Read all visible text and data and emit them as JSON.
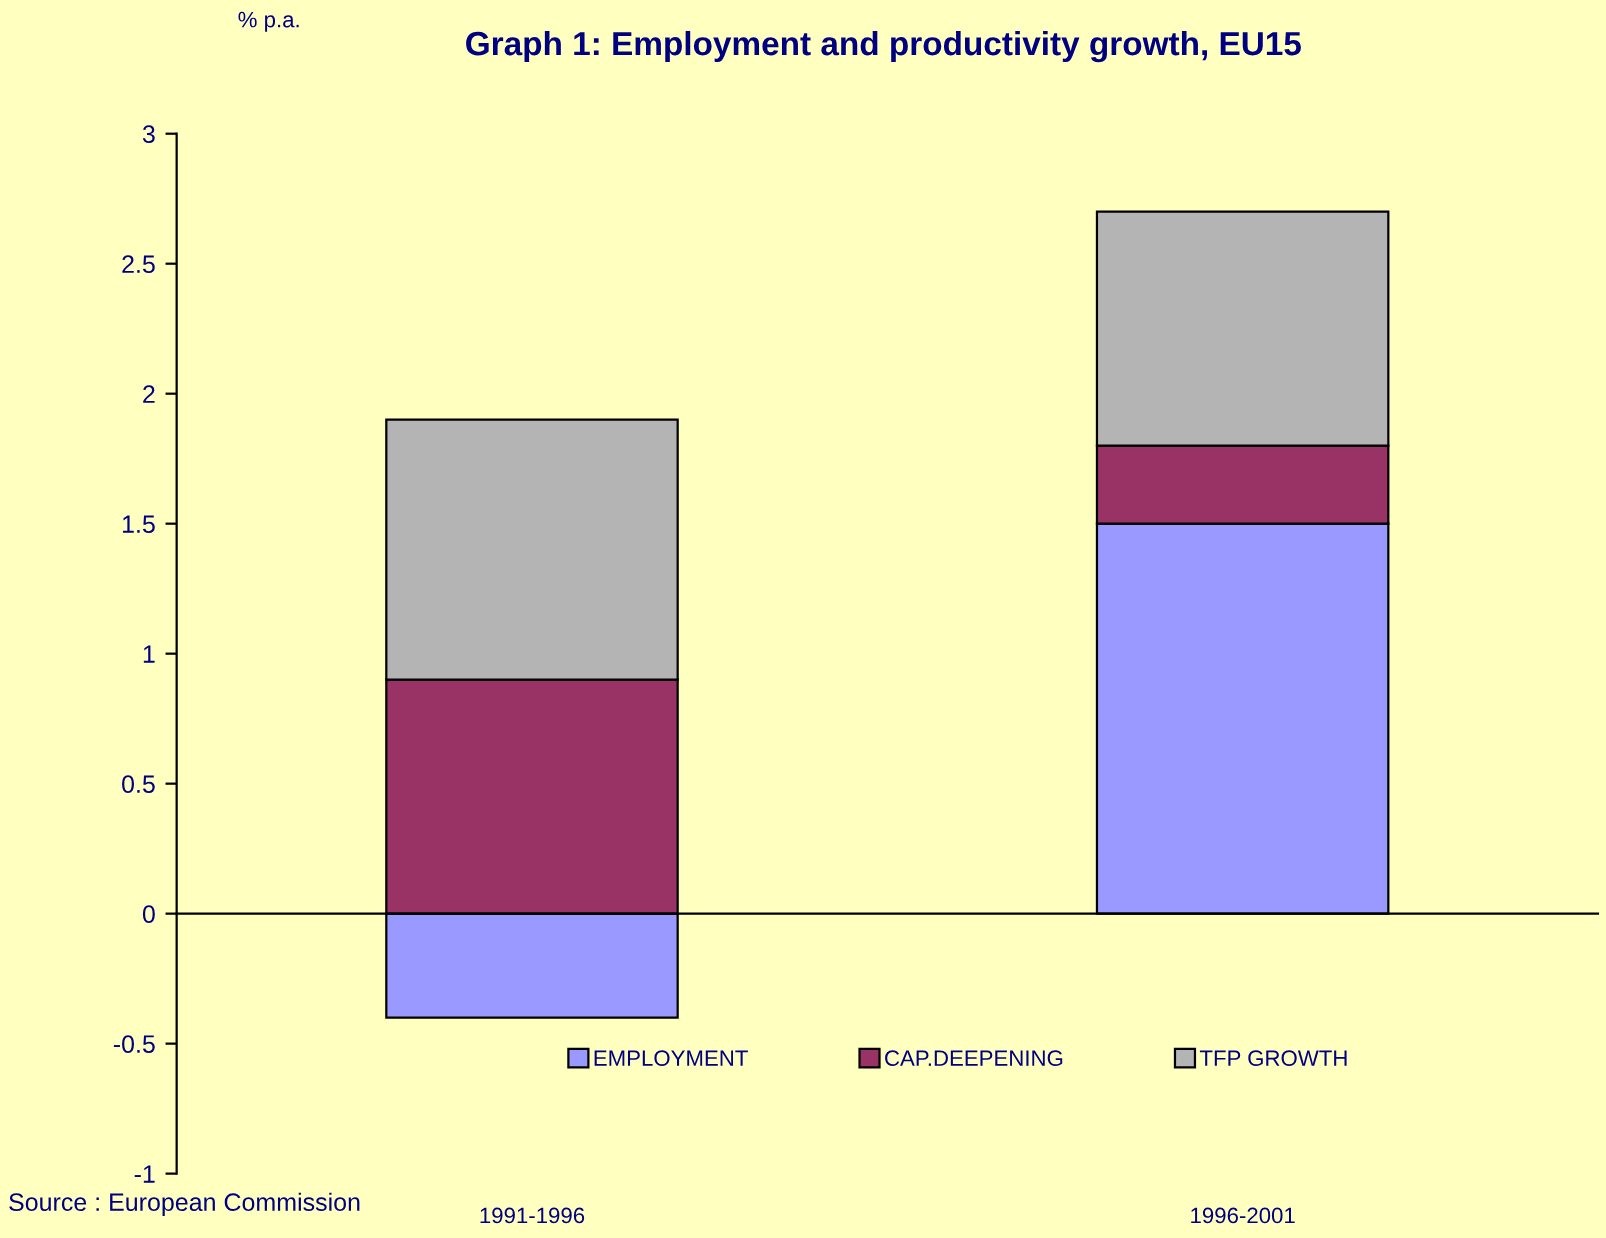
{
  "chart_data": {
    "type": "bar",
    "title": "Graph 1: Employment and productivity growth, EU15",
    "ylabel": "% p.a.",
    "annotations": [
      "Source : European Commission"
    ],
    "categories": [
      "1991-1996",
      "1996-2001"
    ],
    "stacked": true,
    "series": [
      {
        "name": "EMPLOYMENT",
        "color": "#9999ff",
        "values": [
          -0.4,
          1.5
        ]
      },
      {
        "name": "CAP.DEEPENING",
        "color": "#993366",
        "values": [
          0.9,
          0.3
        ]
      },
      {
        "name": "TFP GROWTH",
        "color": "#b4b4b4",
        "values": [
          1.0,
          0.9
        ]
      }
    ],
    "ylim": [
      -1,
      3
    ],
    "yticks": [
      -1,
      -0.5,
      0,
      0.5,
      1,
      1.5,
      2,
      2.5,
      3
    ],
    "legend": "bottom"
  }
}
